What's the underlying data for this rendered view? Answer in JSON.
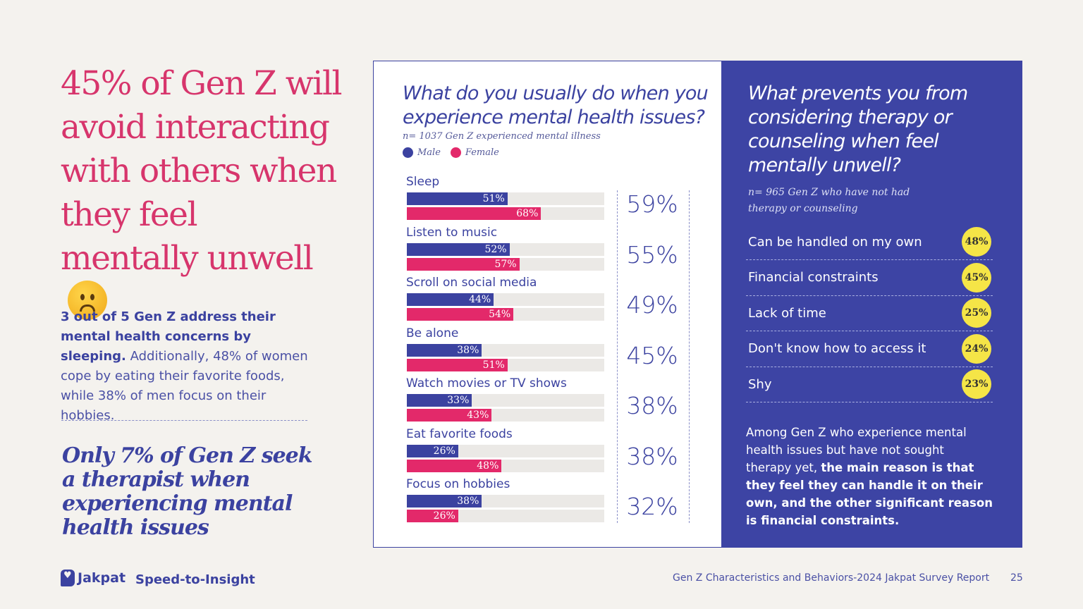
{
  "headline": "45% of Gen Z will avoid interacting with others when they feel mentally unwell",
  "emoji": "frowning-face",
  "paragraph": {
    "bold": "3 out of 5 Gen Z address their mental health concerns by sleeping.",
    "rest": " Additionally, 48% of women cope by eating their favorite foods, while 38% of men focus on their hobbies."
  },
  "quote": "Only 7% of Gen Z seek a therapist when experiencing mental health issues",
  "footer": {
    "logo": "Jakpat",
    "tagline": "Speed-to-Insight",
    "title": "Gen Z Characteristics and Behaviors-2024 Jakpat Survey Report",
    "page": "25"
  },
  "colors": {
    "male": "#3b42a0",
    "female": "#e3296a",
    "panel": "#3d44a4",
    "badge": "#f5e547",
    "headline": "#d7356c"
  },
  "chart_data": {
    "type": "bar",
    "title": "What do you usually do when you experience mental health issues?",
    "subtitle": "n= 1037 Gen Z experienced mental illness",
    "legend": [
      "Male",
      "Female"
    ],
    "legend_position": "top-left",
    "orientation": "horizontal",
    "xlim": [
      0,
      100
    ],
    "categories": [
      "Sleep",
      "Listen to music",
      "Scroll on social media",
      "Be alone",
      "Watch movies or TV shows",
      "Eat favorite foods",
      "Focus on hobbies"
    ],
    "series": [
      {
        "name": "Male",
        "values": [
          51,
          52,
          44,
          38,
          33,
          26,
          38
        ]
      },
      {
        "name": "Female",
        "values": [
          68,
          57,
          54,
          51,
          43,
          48,
          26
        ]
      }
    ],
    "totals": [
      59,
      55,
      49,
      45,
      38,
      38,
      32
    ]
  },
  "barriers": {
    "title": "What prevents you from considering therapy or counseling when feel mentally unwell?",
    "subtitle": "n= 965 Gen Z who have not had therapy or counseling",
    "items": [
      {
        "label": "Can be handled on my own",
        "value": "48%"
      },
      {
        "label": "Financial constraints",
        "value": "45%"
      },
      {
        "label": "Lack of time",
        "value": "25%"
      },
      {
        "label": "Don't know how to access it",
        "value": "24%"
      },
      {
        "label": "Shy",
        "value": "23%"
      }
    ],
    "summary_plain": "Among Gen Z who experience mental health issues but have not sought therapy yet, ",
    "summary_bold": "the main reason is that they feel they can handle it on their own, and the other significant reason is financial constraints."
  }
}
